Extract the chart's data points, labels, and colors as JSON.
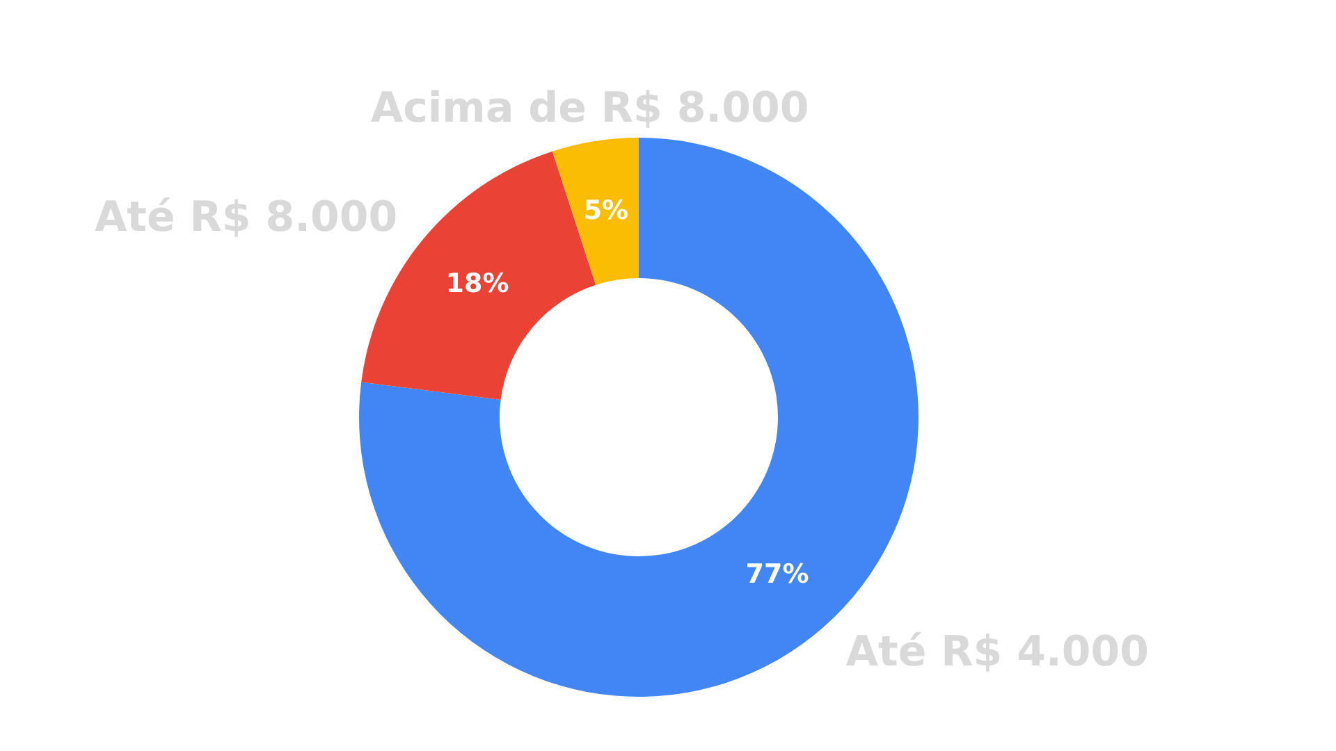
{
  "chart_data": {
    "type": "donut",
    "categories": [
      "Até R$ 4.000",
      "Até R$ 8.000",
      "Acima de R$ 8.000"
    ],
    "values": [
      77,
      18,
      5
    ],
    "colors": [
      "#4285f4",
      "#ea4335",
      "#fbbc04"
    ],
    "value_labels": [
      "77%",
      "18%",
      "5%"
    ],
    "legend": false
  }
}
